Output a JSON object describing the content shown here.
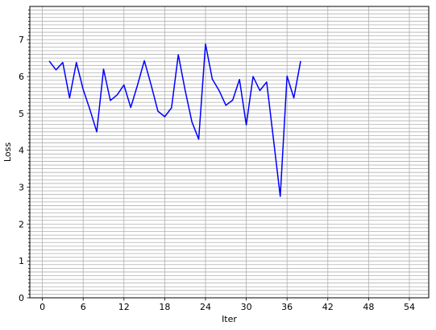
{
  "chart_data": {
    "type": "line",
    "xlabel": "Iter",
    "ylabel": "Loss",
    "xlim": [
      -1.85,
      56.85
    ],
    "ylim": [
      0,
      7.9
    ],
    "xticks": [
      0,
      6,
      12,
      18,
      24,
      30,
      36,
      42,
      48,
      54
    ],
    "yticks": [
      0,
      1,
      2,
      3,
      4,
      5,
      6,
      7
    ],
    "grid": true,
    "minor_grid_y_step": 0.1,
    "line_color": "#0000ff",
    "grid_color": "#b0b0b0",
    "series": [
      {
        "x": [
          1,
          2,
          3,
          4,
          5,
          6,
          7,
          8,
          9,
          10,
          11,
          12,
          13,
          14,
          15,
          16,
          17,
          18,
          19,
          20,
          21,
          22,
          23,
          24,
          25,
          26,
          27,
          28,
          29,
          30,
          31,
          32,
          33,
          34,
          35,
          36,
          37,
          38
        ],
        "values": [
          6.42,
          6.18,
          6.38,
          5.42,
          6.38,
          5.65,
          5.1,
          4.5,
          6.2,
          5.35,
          5.5,
          5.77,
          5.16,
          5.77,
          6.43,
          5.77,
          5.06,
          4.91,
          5.15,
          6.59,
          5.63,
          4.77,
          4.3,
          6.88,
          5.93,
          5.62,
          5.22,
          5.36,
          5.92,
          4.69,
          6.0,
          5.62,
          5.85,
          4.3,
          2.75,
          6.01,
          5.42,
          6.42
        ]
      }
    ]
  }
}
